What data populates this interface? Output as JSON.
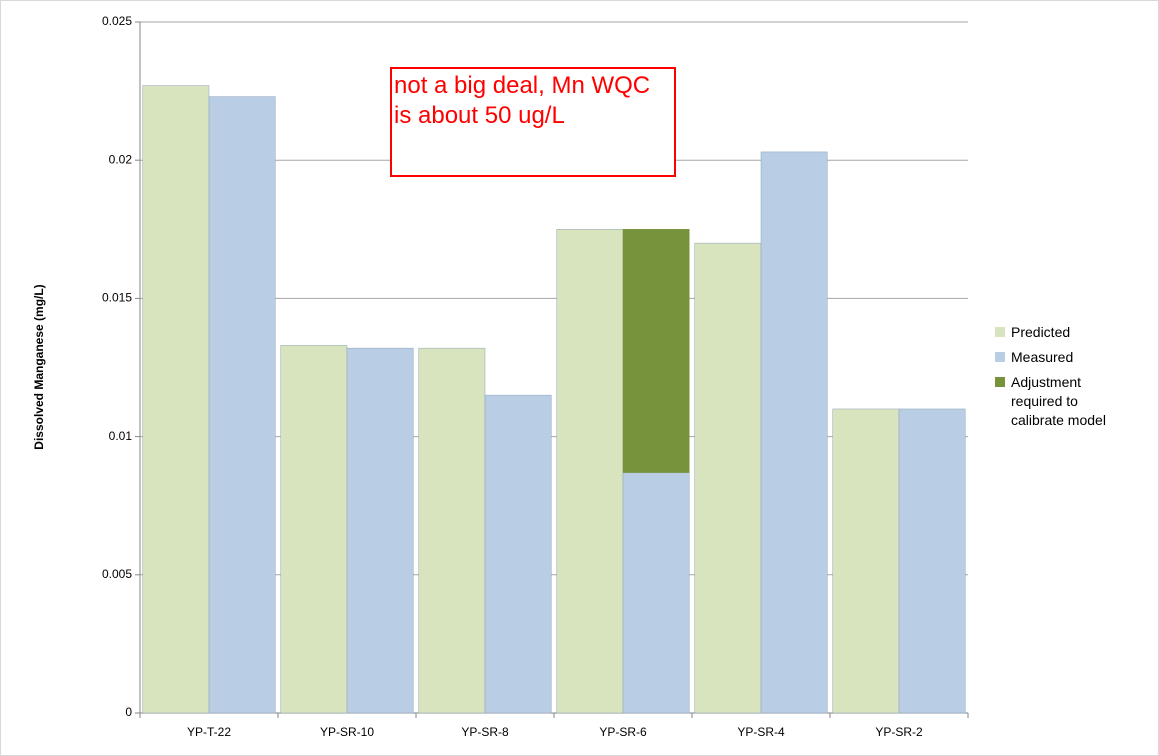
{
  "chart_data": {
    "type": "bar",
    "y_label": "Dissolved Manganese (mg/L)",
    "annotation": "not a big deal, Mn WQC is about 50 ug/L",
    "categories": [
      "YP-T-22",
      "YP-SR-10",
      "YP-SR-8",
      "YP-SR-6",
      "YP-SR-4",
      "YP-SR-2"
    ],
    "series": [
      {
        "name": "Predicted",
        "color": "#d7e4bd",
        "values": [
          0.0227,
          0.0133,
          0.0132,
          0.0175,
          0.017,
          0.011
        ]
      },
      {
        "name": "Measured",
        "color": "#b9cde5",
        "values": [
          0.0223,
          0.0132,
          0.0115,
          0.0087,
          0.0203,
          0.011
        ]
      },
      {
        "name": "Adjustment required to calibrate model",
        "color": "#77933c",
        "stacked": true,
        "values": [
          null,
          null,
          null,
          0.0088,
          null,
          null
        ]
      }
    ],
    "ylim": [
      0,
      0.025
    ],
    "yticks": [
      0,
      0.005,
      0.01,
      0.015,
      0.02,
      0.025
    ],
    "grid": true,
    "legend": "right"
  }
}
